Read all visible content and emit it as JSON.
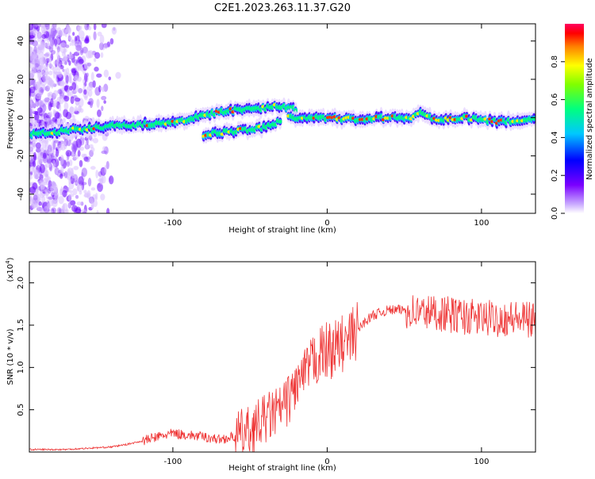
{
  "figure": {
    "title": "C2E1.2023.263.11.37.G20"
  },
  "chart_data": [
    {
      "type": "heatmap",
      "xlabel": "Height of straight line (km)",
      "ylabel": "Frequency (Hz)",
      "xlim": [
        -193,
        135
      ],
      "ylim": [
        -50,
        49
      ],
      "xticks": [
        -100,
        0,
        100
      ],
      "xtick_labels": [
        "-100",
        "0",
        "100"
      ],
      "yticks": [
        -40,
        -20,
        0,
        20,
        40
      ],
      "ytick_labels": [
        "-40",
        "-20",
        "0",
        "20",
        "40"
      ],
      "colorbar": {
        "label": "Normalized spectral amplitude",
        "range": [
          0,
          1
        ],
        "ticks": [
          0.0,
          0.2,
          0.4,
          0.6,
          0.8
        ],
        "tick_labels": [
          "0.0",
          "0.2",
          "0.4",
          "0.6",
          "0.8"
        ],
        "colormap": [
          "#ffffff",
          "#8a2be2",
          "#3a00ff",
          "#00c0ff",
          "#00ff80",
          "#7fff00",
          "#ffff00",
          "#ff8000",
          "#ff0000",
          "#ff0080"
        ]
      },
      "ridges": [
        {
          "x": [
            -193,
            -170,
            -150,
            -130,
            -110,
            -90,
            -75,
            -60,
            -45,
            -30,
            -20
          ],
          "y": [
            -9,
            -7,
            -5,
            -4,
            -3,
            -1,
            2,
            4,
            5,
            6,
            4
          ]
        },
        {
          "x": [
            -80,
            -60,
            -40,
            -30
          ],
          "y": [
            -9,
            -7,
            -5,
            -2
          ]
        },
        {
          "x": [
            -25,
            0,
            20,
            40,
            55,
            60,
            70,
            90,
            110,
            135
          ],
          "y": [
            0,
            0,
            -1,
            0,
            0,
            3,
            -1,
            0,
            -2,
            -1
          ]
        }
      ],
      "grid": false
    },
    {
      "type": "line",
      "xlabel": "Height of straight line (km)",
      "ylabel": "SNR (10 * v/v)",
      "yscale_label": "(x10",
      "yscale_exp": "4",
      "yscale_close": ")",
      "xlim": [
        -193,
        135
      ],
      "ylim": [
        0,
        2.25
      ],
      "xticks": [
        -100,
        0,
        100
      ],
      "xtick_labels": [
        "-100",
        "0",
        "100"
      ],
      "yticks": [
        0.5,
        1.0,
        1.5,
        2.0
      ],
      "ytick_labels": [
        "0.5",
        "1.0",
        "1.5",
        "2.0"
      ],
      "series": [
        {
          "color": "#ee3333",
          "x": [
            -193,
            -180,
            -170,
            -160,
            -150,
            -140,
            -130,
            -120,
            -110,
            -100,
            -90,
            -80,
            -70,
            -60,
            -50,
            -45,
            -40,
            -35,
            -30,
            -25,
            -20,
            -15,
            -12,
            -10,
            -5,
            0,
            5,
            10,
            12,
            15,
            20,
            25,
            30,
            40,
            50,
            60,
            70,
            80,
            90,
            100,
            110,
            120,
            135
          ],
          "y": [
            0.03,
            0.03,
            0.03,
            0.04,
            0.05,
            0.06,
            0.09,
            0.13,
            0.18,
            0.22,
            0.2,
            0.18,
            0.15,
            0.18,
            0.25,
            0.32,
            0.4,
            0.45,
            0.5,
            0.62,
            0.8,
            0.9,
            1.0,
            1.05,
            1.15,
            1.2,
            1.22,
            1.28,
            1.25,
            1.35,
            1.45,
            1.55,
            1.62,
            1.68,
            1.68,
            1.65,
            1.65,
            1.62,
            1.6,
            1.58,
            1.58,
            1.58,
            1.55
          ]
        }
      ],
      "grid": false
    }
  ]
}
